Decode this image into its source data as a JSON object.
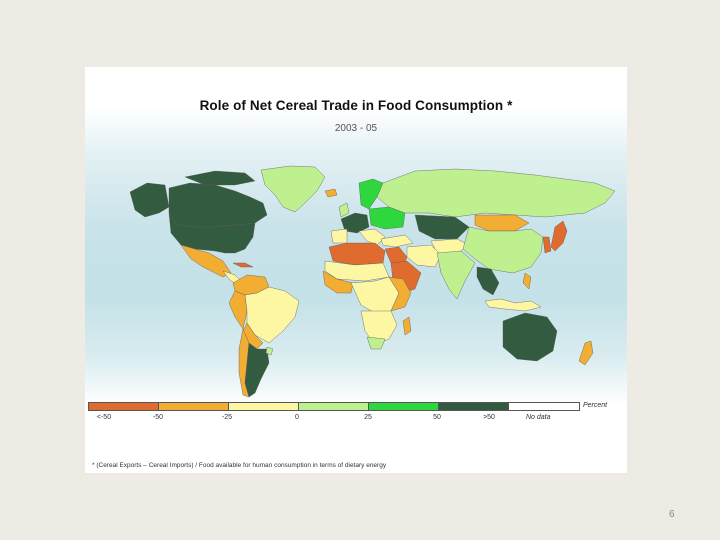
{
  "map": {
    "title": "Role of Net Cereal Trade in Food Consumption *",
    "period": "2003 - 05",
    "legend": {
      "unit": "Percent",
      "ticks": [
        "<-50",
        "-50",
        "-25",
        "0",
        "25",
        "50",
        ">50"
      ],
      "no_data": "No data",
      "colors": [
        "#df6b2f",
        "#f2ad33",
        "#fdf7a4",
        "#bef08f",
        "#2ed73e",
        "#325b3f",
        "#ffffff"
      ]
    },
    "footnote": "* (Cereal Exports – Cereal Imports) / Food available for human consumption in terms of dietary energy"
  },
  "page": {
    "number": "6"
  }
}
